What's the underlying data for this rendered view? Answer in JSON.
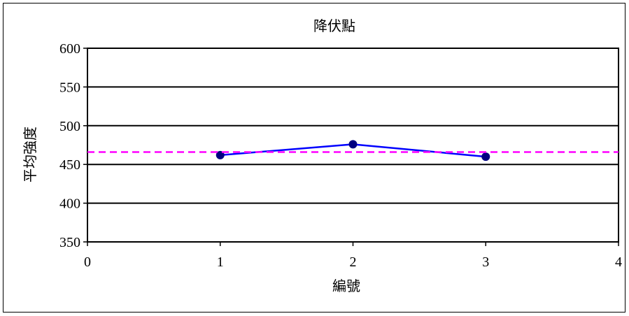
{
  "chart_data": {
    "type": "line",
    "title": "降伏點",
    "xlabel": "編號",
    "ylabel": "平均強度",
    "xlim": [
      0,
      4
    ],
    "ylim": [
      350,
      600
    ],
    "x_ticks": [
      0,
      1,
      2,
      3,
      4
    ],
    "y_ticks": [
      350,
      400,
      450,
      500,
      550,
      600
    ],
    "grid": "horizontal",
    "series": [
      {
        "kind": "line-with-markers",
        "color": "#0000ff",
        "marker_color": "#000080",
        "points": [
          {
            "x": 1,
            "y": 462
          },
          {
            "x": 2,
            "y": 476
          },
          {
            "x": 3,
            "y": 460
          }
        ]
      },
      {
        "kind": "reference-line-dashed",
        "color": "#ff00ff",
        "x": [
          0,
          4
        ],
        "y": [
          466,
          466
        ]
      }
    ]
  }
}
